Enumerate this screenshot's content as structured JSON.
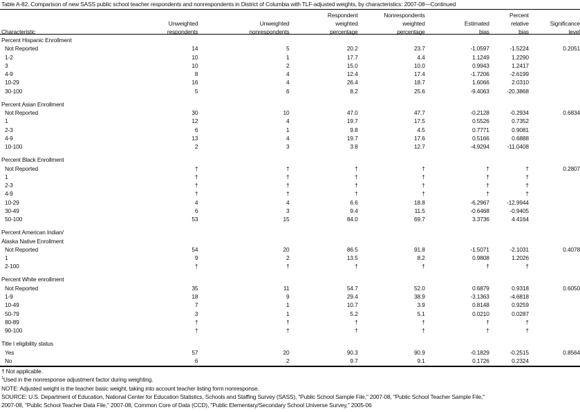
{
  "title": "Table A-82. Comparison of new SASS public school teacher respondents and nonrespondents in District of Columbia with TLF-adjusted weights, by characteristics: 2007-08—Continued",
  "columns": [
    [
      "",
      "",
      "Characteristic"
    ],
    [
      "",
      "Unweighted",
      "respondents"
    ],
    [
      "",
      "Unweighted",
      "nonrespondents"
    ],
    [
      "Respondent",
      "weighted",
      "percentage"
    ],
    [
      "Nonrespondents",
      "weighted",
      "percentage"
    ],
    [
      "",
      "Estimated",
      "bias"
    ],
    [
      "Percent",
      "relative",
      "bias"
    ],
    [
      "",
      "Significance",
      "level"
    ]
  ],
  "groups": [
    {
      "heading": [
        "Percent Hispanic Enrollment"
      ],
      "rows": [
        [
          "Not Reported",
          "14",
          "5",
          "20.2",
          "23.7",
          "-1.0597",
          "-1.5224",
          "0.2051"
        ],
        [
          "1-2",
          "10",
          "1",
          "17.7",
          "4.4",
          "1.1249",
          "1.2290",
          ""
        ],
        [
          "3",
          "10",
          "2",
          "15.0",
          "10.0",
          "0.9943",
          "1.2417",
          ""
        ],
        [
          "4-9",
          "8",
          "4",
          "12.4",
          "17.4",
          "-1.7206",
          "-2.6199",
          ""
        ],
        [
          "10-29",
          "16",
          "4",
          "26.4",
          "18.7",
          "1.6066",
          "2.0310",
          ""
        ],
        [
          "30-100",
          "5",
          "6",
          "8.2",
          "25.6",
          "-9.4063",
          "-20.3868",
          ""
        ]
      ]
    },
    {
      "heading": [
        "Percent Asian Enrollment"
      ],
      "rows": [
        [
          "Not Reported",
          "30",
          "10",
          "47.0",
          "47.7",
          "-0.2128",
          "-0.2934",
          "0.6834"
        ],
        [
          "1",
          "12",
          "4",
          "19.7",
          "17.5",
          "0.5526",
          "0.7352",
          ""
        ],
        [
          "2-3",
          "6",
          "1",
          "9.8",
          "4.5",
          "0.7771",
          "0.9081",
          ""
        ],
        [
          "4-9",
          "13",
          "4",
          "19.7",
          "17.6",
          "0.5166",
          "0.6888",
          ""
        ],
        [
          "10-100",
          "2",
          "3",
          "3.8",
          "12.7",
          "-4.9294",
          "-11.0408",
          ""
        ]
      ]
    },
    {
      "heading": [
        "Percent Black Enrollment"
      ],
      "rows": [
        [
          "Not Reported",
          "†",
          "†",
          "†",
          "†",
          "†",
          "†",
          "0.2807"
        ],
        [
          "1",
          "†",
          "†",
          "†",
          "†",
          "†",
          "†",
          ""
        ],
        [
          "2-3",
          "†",
          "†",
          "†",
          "†",
          "†",
          "†",
          ""
        ],
        [
          "4-9",
          "†",
          "†",
          "†",
          "†",
          "†",
          "†",
          ""
        ],
        [
          "10-29",
          "4",
          "4",
          "6.6",
          "18.8",
          "-6.2967",
          "-12.9944",
          ""
        ],
        [
          "30-49",
          "6",
          "3",
          "9.4",
          "11.5",
          "-0.6468",
          "-0.9405",
          ""
        ],
        [
          "50-100",
          "53",
          "15",
          "84.0",
          "69.7",
          "3.3736",
          "4.4164",
          ""
        ]
      ]
    },
    {
      "heading": [
        "Percent American Indian/",
        "Alaska Native Enrollment"
      ],
      "rows": [
        [
          "Not Reported",
          "54",
          "20",
          "86.5",
          "91.8",
          "-1.5071",
          "-2.1031",
          "0.4078"
        ],
        [
          "1",
          "9",
          "2",
          "13.5",
          "8.2",
          "0.9808",
          "1.2026",
          ""
        ],
        [
          "2-100",
          "†",
          "†",
          "†",
          "†",
          "†",
          "†",
          ""
        ]
      ]
    },
    {
      "heading": [
        "Percent White enrollment"
      ],
      "rows": [
        [
          "Not Reported",
          "35",
          "11",
          "54.7",
          "52.0",
          "0.6879",
          "0.9318",
          "0.6050"
        ],
        [
          "1-9",
          "18",
          "9",
          "29.4",
          "38.9",
          "-3.1363",
          "-4.6818",
          ""
        ],
        [
          "10-49",
          "7",
          "1",
          "10.7",
          "3.9",
          "0.8148",
          "0.9259",
          ""
        ],
        [
          "50-79",
          "3",
          "1",
          "5.2",
          "5.1",
          "0.0210",
          "0.0287",
          ""
        ],
        [
          "80-89",
          "†",
          "†",
          "†",
          "†",
          "†",
          "†",
          ""
        ],
        [
          "90-100",
          "†",
          "†",
          "†",
          "†",
          "†",
          "†",
          ""
        ]
      ]
    },
    {
      "heading": [
        "Title I eligibility status"
      ],
      "rows": [
        [
          "Yes",
          "57",
          "20",
          "90.3",
          "90.9",
          "-0.1829",
          "-0.2515",
          "0.8564"
        ],
        [
          "No",
          "6",
          "2",
          "9.7",
          "9.1",
          "0.1726",
          "0.2324",
          ""
        ]
      ]
    }
  ],
  "notes": {
    "dagger": "† Not applicable.",
    "footnote_mark": "1",
    "footnote": "Used in the nonresponse adjustment factor during weighting.",
    "note": "NOTE: Adjusted weight is the teacher basic weight, taking into account teacher listing form nonresponse.",
    "source1": "SOURCE: U.S. Department of Education, National Center for Education Statistics, Schools and Staffing Survey (SASS), \"Public School Sample File,\" 2007-08, \"Public School Teacher Sample File,\"",
    "source2": "2007-08, \"Public School Teacher Data File,\" 2007-08, Common Core of Data (CCD), \"Public Elementary/Secondary School Universe Survey,\" 2005-06"
  }
}
